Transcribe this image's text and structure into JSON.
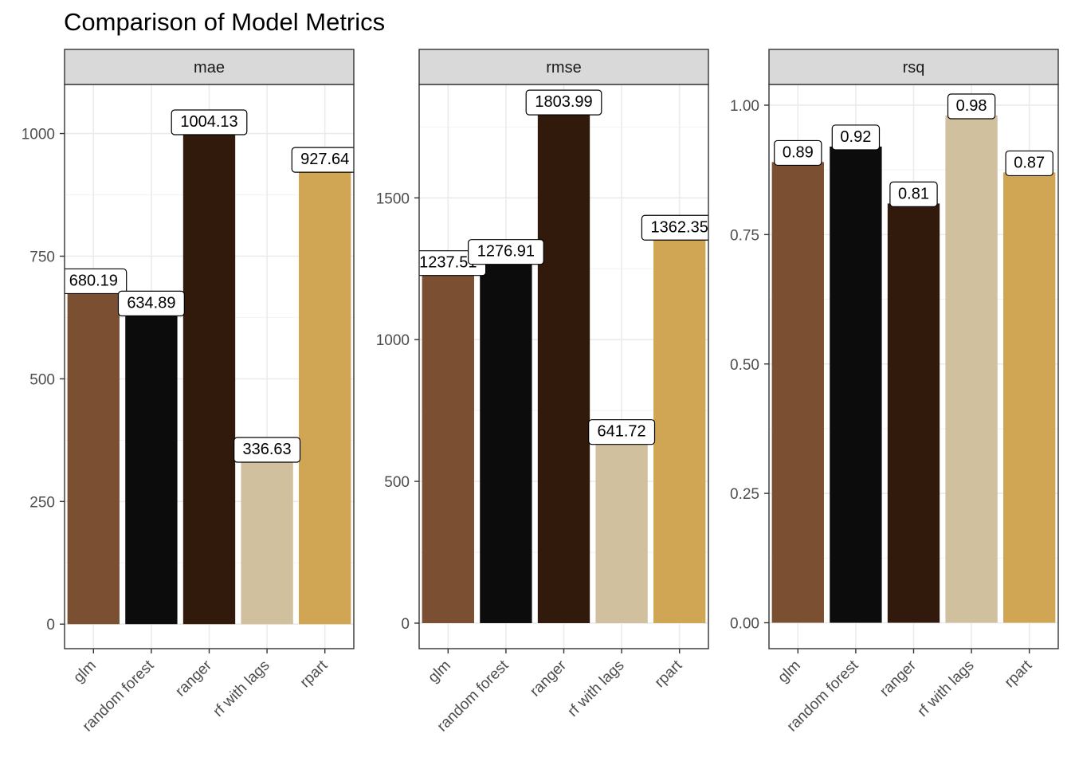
{
  "chart_data": {
    "type": "bar",
    "title": "Comparison of Model Metrics",
    "categories": [
      "glm",
      "random forest",
      "ranger",
      "rf with lags",
      "rpart"
    ],
    "colors": [
      "#7B5032",
      "#0C0C0C",
      "#311A0C",
      "#D0C09E",
      "#D0A554"
    ],
    "grid": true,
    "legend": "none",
    "facets": [
      {
        "label": "mae",
        "values": [
          680.19,
          634.89,
          1004.13,
          336.63,
          927.64
        ],
        "value_labels": [
          "680.19",
          "634.89",
          "1004.13",
          "336.63",
          "927.64"
        ],
        "ylim": [
          -50,
          1100
        ],
        "yticks": [
          0,
          250,
          500,
          750,
          1000
        ],
        "ytick_labels": [
          "0",
          "250",
          "500",
          "750",
          "1000"
        ]
      },
      {
        "label": "rmse",
        "values": [
          1237.51,
          1276.91,
          1803.99,
          641.72,
          1362.35
        ],
        "value_labels": [
          "1237.51",
          "1276.91",
          "1803.99",
          "641.72",
          "1362.35"
        ],
        "ylim": [
          -90,
          1900
        ],
        "yticks": [
          0,
          500,
          1000,
          1500
        ],
        "ytick_labels": [
          "0",
          "500",
          "1000",
          "1500"
        ]
      },
      {
        "label": "rsq",
        "values": [
          0.89,
          0.92,
          0.81,
          0.98,
          0.87
        ],
        "value_labels": [
          "0.89",
          "0.92",
          "0.81",
          "0.98",
          "0.87"
        ],
        "ylim": [
          -0.05,
          1.04
        ],
        "yticks": [
          0,
          0.25,
          0.5,
          0.75,
          1.0
        ],
        "ytick_labels": [
          "0.00",
          "0.25",
          "0.50",
          "0.75",
          "1.00"
        ]
      }
    ]
  }
}
